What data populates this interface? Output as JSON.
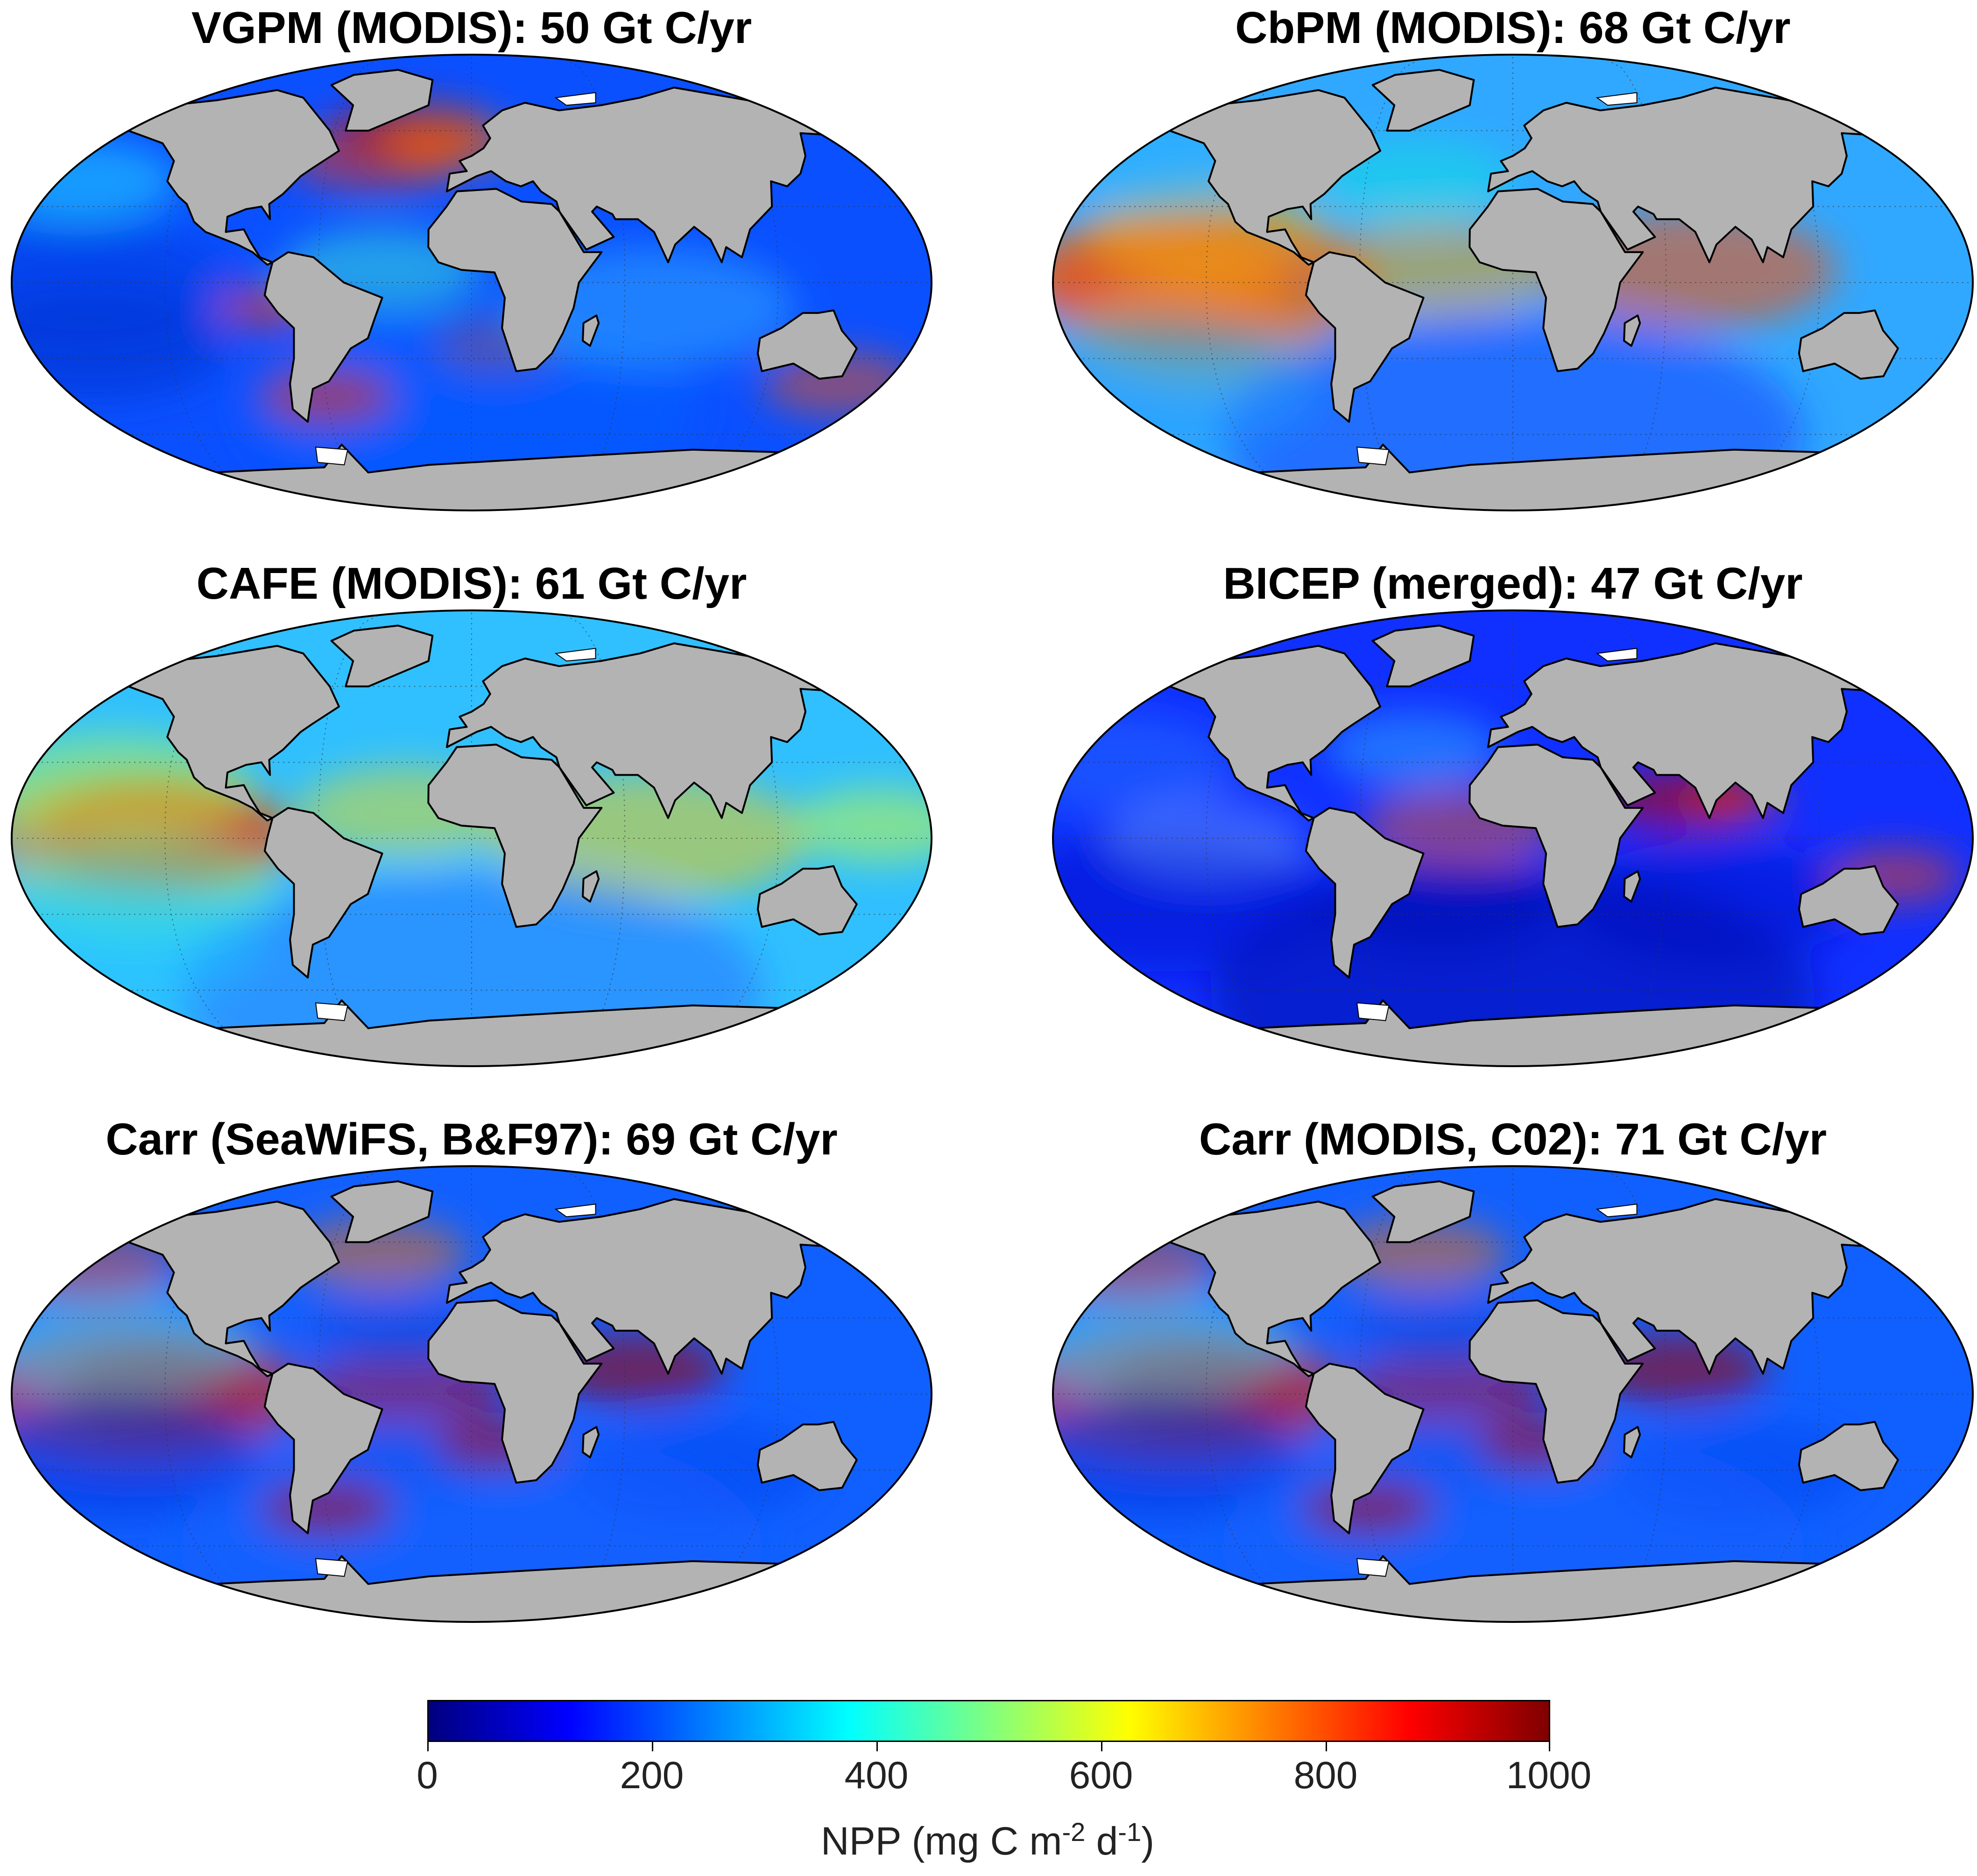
{
  "panels": [
    {
      "title": "VGPM (MODIS): 50 Gt C/yr",
      "variant": "vgpm"
    },
    {
      "title": "CbPM (MODIS): 68 Gt C/yr",
      "variant": "cbpm"
    },
    {
      "title": "CAFE (MODIS): 61 Gt C/yr",
      "variant": "cafe"
    },
    {
      "title": "BICEP (merged): 47 Gt C/yr",
      "variant": "bicep"
    },
    {
      "title": "Carr (SeaWiFS, B&F97): 69 Gt C/yr",
      "variant": "carr"
    },
    {
      "title": "Carr (MODIS, C02): 71 Gt C/yr",
      "variant": "carr"
    }
  ],
  "colorbar": {
    "ticks": [
      "0",
      "200",
      "400",
      "600",
      "800",
      "1000"
    ],
    "label_main": "NPP (mg C m",
    "label_exp1": "-2",
    "label_mid": " d",
    "label_exp2": "-1",
    "label_end": ")",
    "colormap": [
      "#00007f",
      "#0000ff",
      "#007fff",
      "#00ffff",
      "#7fff7f",
      "#ffff00",
      "#ff7f00",
      "#ff0000",
      "#7f0000"
    ]
  },
  "colors": {
    "land": "#b3b3b3",
    "ice": "#ffffff",
    "coast": "#000000"
  }
}
